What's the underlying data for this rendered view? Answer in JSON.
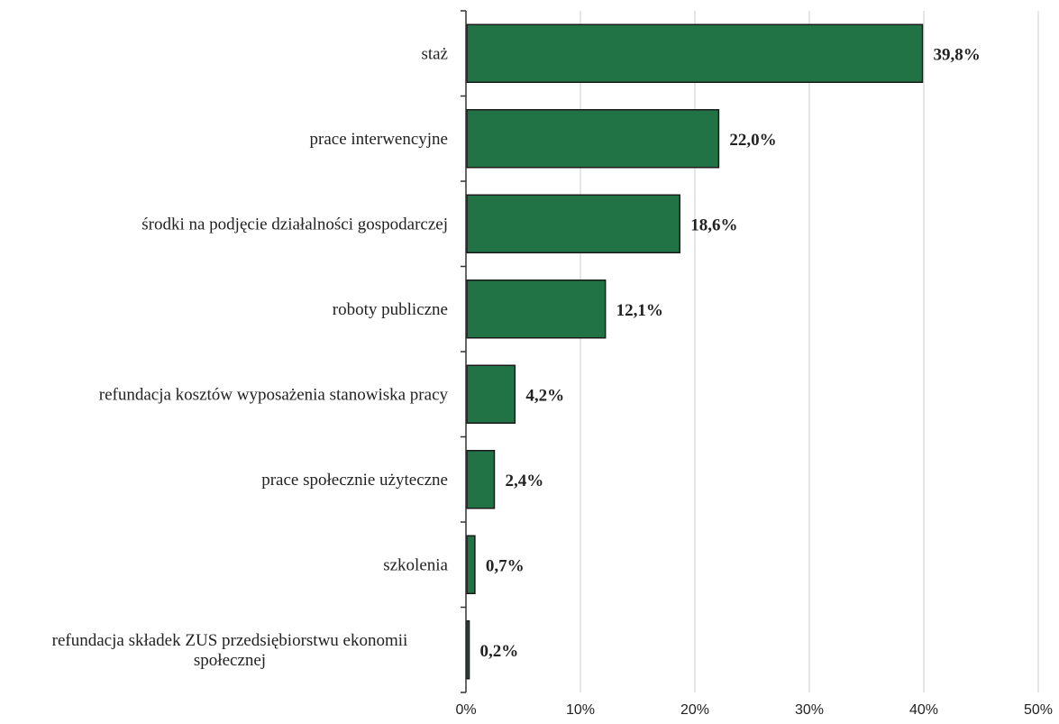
{
  "chart_data": {
    "type": "bar",
    "orientation": "horizontal",
    "categories": [
      "staż",
      "prace interwencyjne",
      "środki na podjęcie działalności gospodarczej",
      "roboty publiczne",
      "refundacja kosztów wyposażenia stanowiska pracy",
      "prace społecznie użyteczne",
      "szkolenia",
      "refundacja składek ZUS przedsiębiorstwu ekonomii społecznej"
    ],
    "category_lines": [
      [
        "staż"
      ],
      [
        "prace interwencyjne"
      ],
      [
        "środki na podjęcie działalności gospodarczej"
      ],
      [
        "roboty publiczne"
      ],
      [
        "refundacja kosztów wyposażenia stanowiska pracy"
      ],
      [
        "prace społecznie użyteczne"
      ],
      [
        "szkolenia"
      ],
      [
        "refundacja składek ZUS przedsiębiorstwu ekonomii",
        "społecznej"
      ]
    ],
    "values": [
      39.8,
      22.0,
      18.6,
      12.1,
      4.2,
      2.4,
      0.7,
      0.2
    ],
    "value_labels": [
      "39,8%",
      "22,0%",
      "18,6%",
      "12,1%",
      "4,2%",
      "2,4%",
      "0,7%",
      "0,2%"
    ],
    "x_ticks": [
      "0%",
      "10%",
      "20%",
      "30%",
      "40%",
      "50%"
    ],
    "xlim": [
      0,
      50
    ],
    "grid": true,
    "legend": "none",
    "bar_color": "#217346",
    "bar_edge_color": "#1a1a1a",
    "grid_color": "#cccccc",
    "title": "",
    "xlabel": "",
    "ylabel": ""
  }
}
